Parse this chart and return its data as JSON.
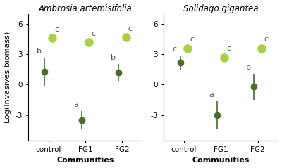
{
  "panels": [
    {
      "title": "Ambrosia artemisifolia",
      "categories": [
        "control",
        "FG1",
        "FG2"
      ],
      "dark_points": [
        1.3,
        -3.5,
        1.2
      ],
      "dark_errors": [
        1.4,
        0.9,
        0.85
      ],
      "light_points": [
        4.6,
        4.2,
        4.7
      ],
      "light_errors": [
        0.25,
        0.25,
        0.25
      ],
      "dark_labels": [
        "b",
        "a",
        "b"
      ],
      "light_labels": [
        "c",
        "c",
        "c"
      ],
      "ylabel": "Log(Invasives biomass)",
      "xlabel": "Communities",
      "ylim": [
        -5.5,
        7.0
      ],
      "yticks": [
        -3,
        0,
        3,
        6
      ]
    },
    {
      "title": "Solidago gigantea",
      "categories": [
        "control",
        "FG1",
        "FG2"
      ],
      "dark_points": [
        2.2,
        -3.0,
        -0.2
      ],
      "dark_errors": [
        0.7,
        1.4,
        1.3
      ],
      "light_points": [
        3.6,
        2.7,
        3.6
      ],
      "light_errors": [
        0.3,
        0.25,
        0.3
      ],
      "dark_labels": [
        "c",
        "a",
        "b"
      ],
      "light_labels": [
        "c",
        "c",
        "c"
      ],
      "ylabel": "",
      "xlabel": "Communities",
      "ylim": [
        -5.5,
        7.0
      ],
      "yticks": [
        -3,
        0,
        3,
        6
      ]
    }
  ],
  "dark_color": "#4a6e28",
  "light_color": "#a8d040",
  "background_color": "#ffffff",
  "title_fontsize": 8.5,
  "label_fontsize": 8,
  "tick_fontsize": 7.5,
  "annot_fontsize": 8,
  "dark_marker_size": 6,
  "light_marker_size": 8
}
